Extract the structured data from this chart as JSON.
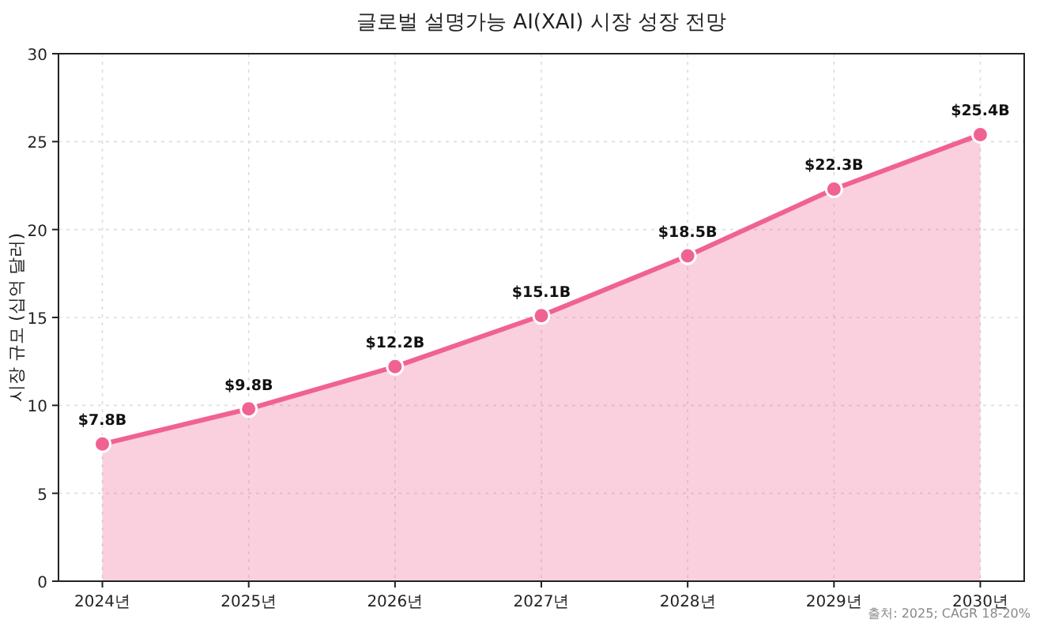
{
  "chart_data": {
    "type": "area",
    "title": "글로벌 설명가능 AI(XAI) 시장 성장 전망",
    "ylabel": "시장 규모 (십억 달러)",
    "categories": [
      "2024년",
      "2025년",
      "2026년",
      "2027년",
      "2028년",
      "2029년",
      "2030년"
    ],
    "series": [
      {
        "color": "#f06292",
        "values": [
          7.8,
          9.8,
          12.2,
          15.1,
          18.5,
          22.3,
          25.4
        ],
        "value_labels": [
          "$7.8B",
          "$9.8B",
          "$12.2B",
          "$15.1B",
          "$18.5B",
          "$22.3B",
          "$25.4B"
        ]
      }
    ],
    "ylim": [
      0,
      30
    ],
    "yticks": [
      0,
      5,
      10,
      15,
      20,
      25,
      30
    ],
    "grid": true,
    "marker": "circle",
    "line_style": "solid",
    "annotations": [
      "출처: 2025; CAGR 18-20%"
    ]
  }
}
